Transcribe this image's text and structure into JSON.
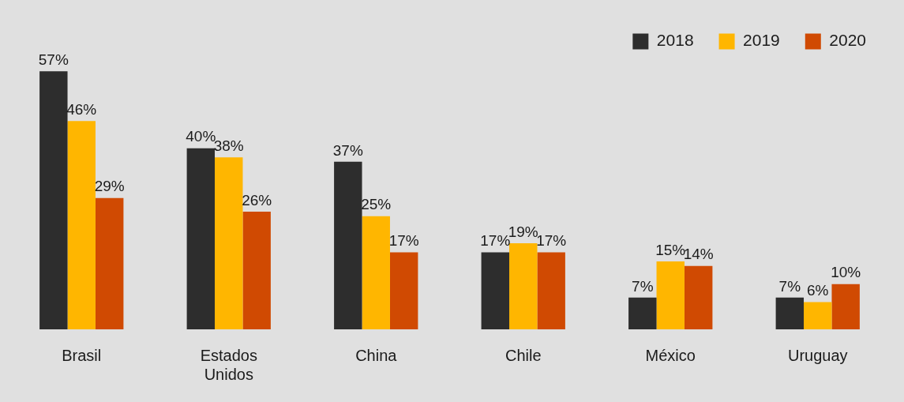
{
  "chart_data": {
    "type": "bar",
    "categories": [
      "Brasil",
      "Estados Unidos",
      "China",
      "Chile",
      "México",
      "Uruguay"
    ],
    "series": [
      {
        "name": "2018",
        "color": "#2d2d2d",
        "values": [
          57,
          40,
          37,
          17,
          7,
          7
        ],
        "value_labels": [
          "57%",
          "40%",
          "37%",
          "17%",
          "7%",
          "7%"
        ]
      },
      {
        "name": "2019",
        "color": "#ffb600",
        "values": [
          46,
          38,
          25,
          19,
          15,
          6
        ],
        "value_labels": [
          "46%",
          "38%",
          "25%",
          "19%",
          "15%",
          "6%"
        ]
      },
      {
        "name": "2020",
        "color": "#d04a02",
        "values": [
          29,
          26,
          17,
          17,
          14,
          10
        ],
        "value_labels": [
          "29%",
          "26%",
          "17%",
          "17%",
          "14%",
          "10%"
        ]
      }
    ],
    "legend": "top right",
    "grid": false
  }
}
